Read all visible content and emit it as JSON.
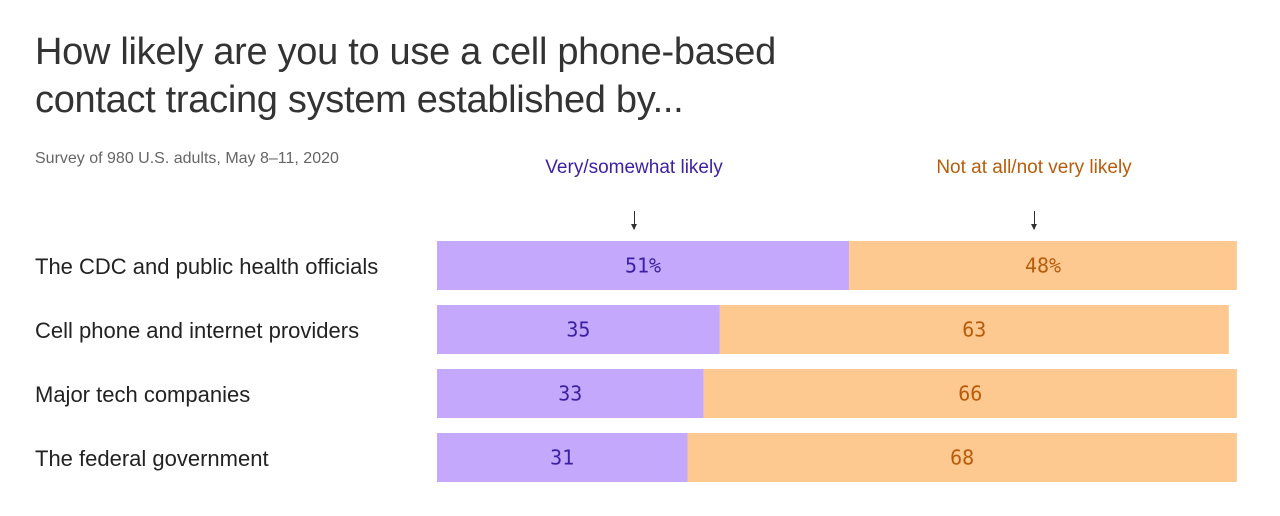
{
  "title": "How likely are you to use a cell phone-based contact tracing system established by...",
  "subtitle": "Survey of 980 U.S. adults, May 8–11, 2020",
  "legend": {
    "likely": "Very/somewhat likely",
    "unlikely": "Not at all/not very likely"
  },
  "colors": {
    "likely_fill": "#c4a8fb",
    "likely_text": "#3d1fa3",
    "unlikely_fill": "#fdc991",
    "unlikely_text": "#b85c0a"
  },
  "chart_data": {
    "type": "bar",
    "orientation": "horizontal",
    "stacked": true,
    "categories": [
      "The CDC and public health officials",
      "Cell phone and internet providers",
      "Major tech companies",
      "The federal government"
    ],
    "series": [
      {
        "name": "Very/somewhat likely",
        "values": [
          51,
          35,
          33,
          31
        ],
        "labels": [
          "51%",
          "35",
          "33",
          "31"
        ]
      },
      {
        "name": "Not at all/not very likely",
        "values": [
          48,
          63,
          66,
          68
        ],
        "labels": [
          "48%",
          "63",
          "66",
          "68"
        ]
      }
    ],
    "xlim": [
      0,
      100
    ]
  }
}
